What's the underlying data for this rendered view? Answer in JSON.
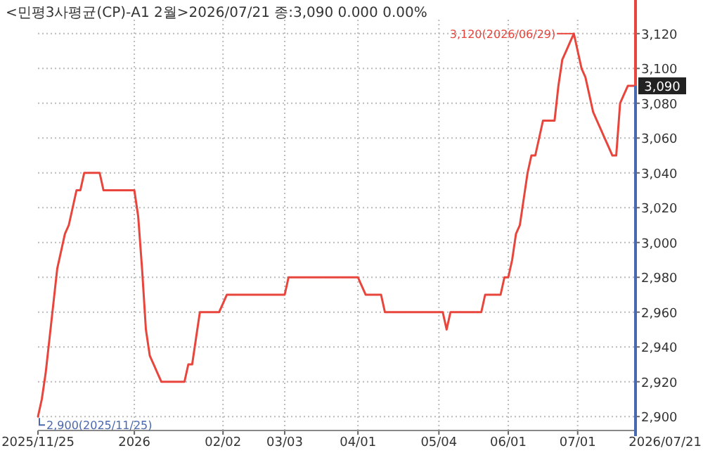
{
  "chart_data": {
    "type": "line",
    "title": "<민평3사평균(CP)-A1 2월>2026/07/21 종:3,090 0.000 0.00%",
    "categories": [
      "2025/11/25",
      null,
      null,
      null,
      null,
      null,
      null,
      null,
      null,
      null,
      null,
      null,
      null,
      null,
      null,
      null,
      null,
      null,
      null,
      null,
      null,
      null,
      null,
      null,
      null,
      "2026",
      null,
      null,
      null,
      null,
      null,
      null,
      null,
      null,
      null,
      null,
      null,
      null,
      null,
      null,
      null,
      null,
      null,
      null,
      null,
      null,
      null,
      null,
      "02/02",
      null,
      null,
      null,
      null,
      null,
      null,
      null,
      null,
      null,
      null,
      null,
      null,
      null,
      null,
      null,
      "03/03",
      null,
      null,
      null,
      null,
      null,
      null,
      null,
      null,
      null,
      null,
      null,
      null,
      null,
      null,
      null,
      null,
      null,
      null,
      "04/01",
      null,
      null,
      null,
      null,
      null,
      null,
      null,
      null,
      null,
      null,
      null,
      null,
      null,
      null,
      null,
      null,
      null,
      null,
      null,
      null,
      "05/04",
      null,
      null,
      null,
      null,
      null,
      null,
      null,
      null,
      null,
      null,
      null,
      null,
      null,
      null,
      null,
      null,
      null,
      "06/01",
      null,
      null,
      null,
      null,
      null,
      null,
      null,
      null,
      null,
      null,
      null,
      null,
      null,
      null,
      null,
      null,
      null,
      "07/01",
      null,
      null,
      null,
      null,
      null,
      null,
      null,
      null,
      null,
      null,
      null,
      null,
      null,
      null,
      null
    ],
    "series": [
      {
        "color": "#e8453c",
        "values": [
          2900,
          2910,
          2925,
          2945,
          2965,
          2985,
          2995,
          3005,
          3010,
          3020,
          3030,
          3030,
          3040,
          3040,
          3040,
          3040,
          3040,
          3030,
          3030,
          3030,
          3030,
          3030,
          3030,
          3030,
          3030,
          3030,
          3015,
          2985,
          2950,
          2935,
          2930,
          2925,
          2920,
          2920,
          2920,
          2920,
          2920,
          2920,
          2920,
          2930,
          2930,
          2945,
          2960,
          2960,
          2960,
          2960,
          2960,
          2960,
          2965,
          2970,
          2970,
          2970,
          2970,
          2970,
          2970,
          2970,
          2970,
          2970,
          2970,
          2970,
          2970,
          2970,
          2970,
          2970,
          2970,
          2980,
          2980,
          2980,
          2980,
          2980,
          2980,
          2980,
          2980,
          2980,
          2980,
          2980,
          2980,
          2980,
          2980,
          2980,
          2980,
          2980,
          2980,
          2980,
          2975,
          2970,
          2970,
          2970,
          2970,
          2970,
          2960,
          2960,
          2960,
          2960,
          2960,
          2960,
          2960,
          2960,
          2960,
          2960,
          2960,
          2960,
          2960,
          2960,
          2960,
          2960,
          2950,
          2960,
          2960,
          2960,
          2960,
          2960,
          2960,
          2960,
          2960,
          2960,
          2970,
          2970,
          2970,
          2970,
          2970,
          2980,
          2980,
          2990,
          3005,
          3010,
          3025,
          3040,
          3050,
          3050,
          3060,
          3070,
          3070,
          3070,
          3070,
          3090,
          3105,
          3110,
          3115,
          3120,
          3110,
          3100,
          3095,
          3085,
          3075,
          3070,
          3065,
          3060,
          3055,
          3050,
          3050,
          3080,
          3085,
          3090,
          3090,
          3090
        ]
      }
    ],
    "ylim": [
      2892,
      3128
    ],
    "yticks": [
      {
        "value": 2900,
        "label": "2,900"
      },
      {
        "value": 2920,
        "label": "2,920"
      },
      {
        "value": 2940,
        "label": "2,940"
      },
      {
        "value": 2960,
        "label": "2,960"
      },
      {
        "value": 2980,
        "label": "2,980"
      },
      {
        "value": 3000,
        "label": "3,000"
      },
      {
        "value": 3020,
        "label": "3,020"
      },
      {
        "value": 3040,
        "label": "3,040"
      },
      {
        "value": 3060,
        "label": "3,060"
      },
      {
        "value": 3080,
        "label": "3,080"
      },
      {
        "value": 3100,
        "label": "3,100"
      },
      {
        "value": 3120,
        "label": "3,120"
      }
    ],
    "grid": true,
    "annotations": [
      "3,120(2026/06/29)",
      {
        "text": "2,900(2025/11/25)",
        "x": "2025/11/25",
        "y": 2900
      },
      {
        "text": "3,090",
        "y": 3090
      },
      "2026/07/21"
    ]
  }
}
